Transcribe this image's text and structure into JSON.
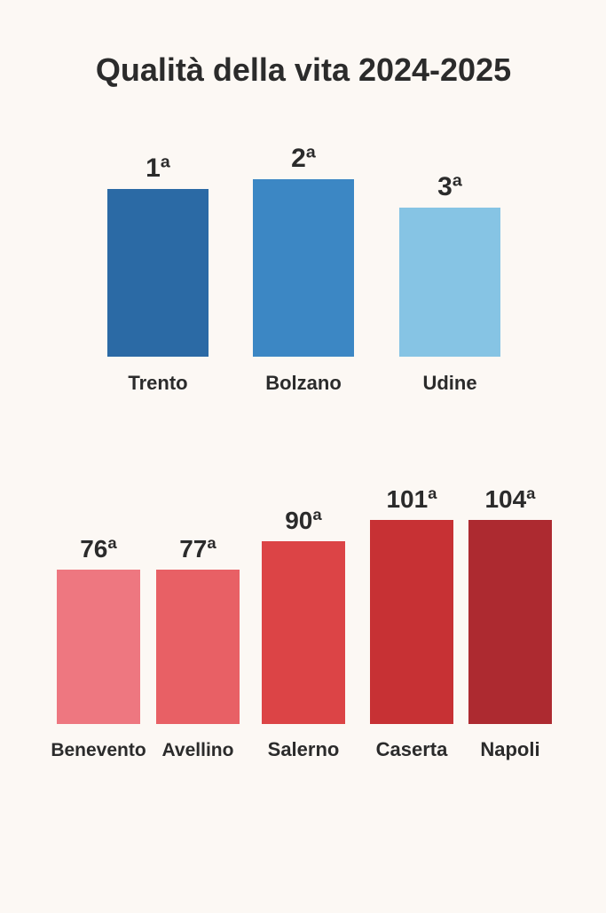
{
  "chart_data": [
    {
      "type": "bar",
      "title": "Qualità della vita 2024-2025",
      "categories": [
        "Trento",
        "Bolzano",
        "Udine"
      ],
      "values": [
        1,
        2,
        3
      ],
      "value_labels": [
        "1ª",
        "2ª",
        "3ª"
      ],
      "colors": [
        "#2b6aa5",
        "#3c87c4",
        "#86c4e4"
      ]
    },
    {
      "type": "bar",
      "categories": [
        "Benevento",
        "Avellino",
        "Salerno",
        "Caserta",
        "Napoli"
      ],
      "values": [
        76,
        77,
        90,
        101,
        104
      ],
      "value_labels": [
        "76ª",
        "77ª",
        "90ª",
        "101ª",
        "104ª"
      ],
      "colors": [
        "#ee7780",
        "#e86065",
        "#dc4446",
        "#c73134",
        "#ad2a30"
      ]
    }
  ]
}
